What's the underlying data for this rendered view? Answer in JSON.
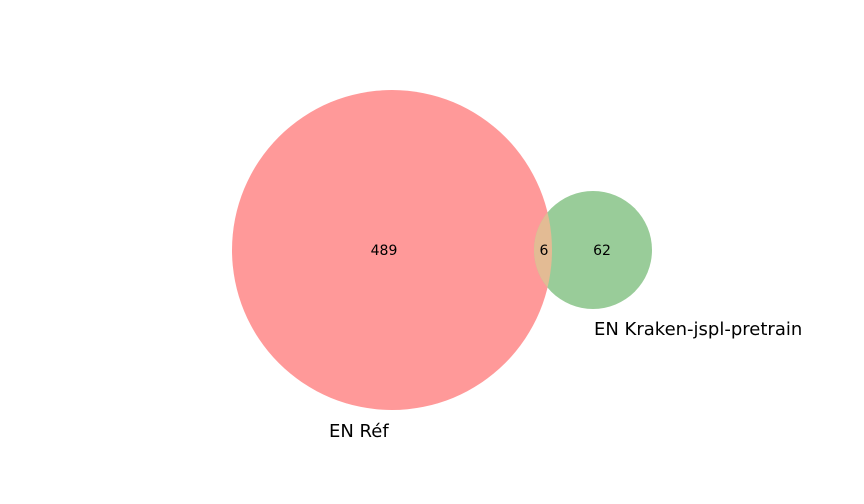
{
  "chart_data": {
    "type": "venn",
    "sets": [
      {
        "name": "EN Réf",
        "only_count": 489,
        "color": "#ff9999"
      },
      {
        "name": "EN Kraken-jspl-pretrain",
        "only_count": 62,
        "color": "#99cc99"
      }
    ],
    "intersection": {
      "count": 6,
      "color": "#e3bb94"
    }
  },
  "labels": {
    "set_a": "EN Réf",
    "set_b": "EN Kraken-jspl-pretrain",
    "count_a_only": "489",
    "count_intersection": "6",
    "count_b_only": "62"
  }
}
